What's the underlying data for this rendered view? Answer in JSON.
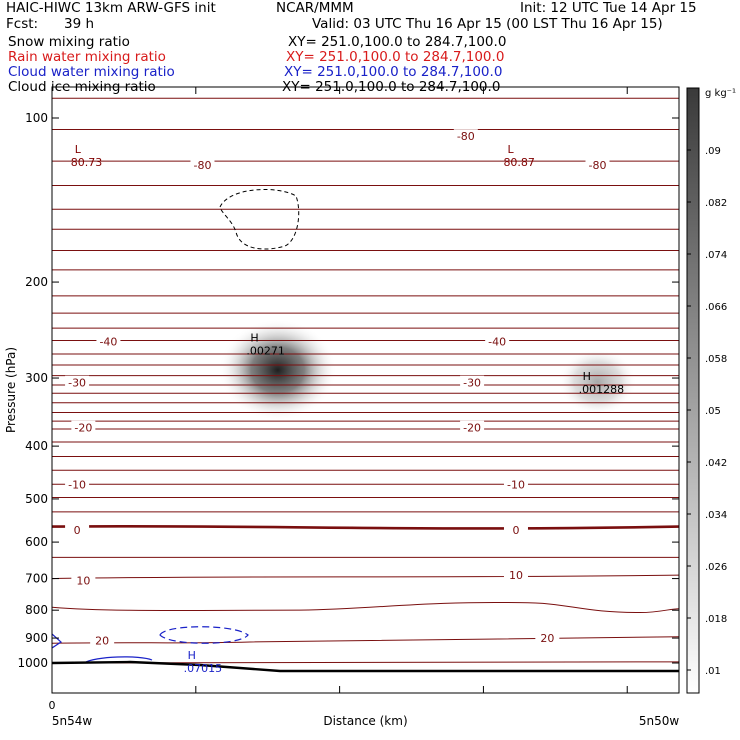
{
  "header": {
    "model": "HAIC-HIWC 13km ARW-GFS init",
    "org": "NCAR/MMM",
    "init": "Init: 12 UTC Tue 14 Apr 15",
    "fcst_label": "Fcst:",
    "fcst_value": "39 h",
    "valid": "Valid: 03 UTC Thu 16 Apr 15 (00 LST Thu 16 Apr 15)"
  },
  "fields": [
    {
      "name": "Snow mixing ratio",
      "xy": "XY= 251.0,100.0 to 284.7,100.0",
      "color": "#000000"
    },
    {
      "name": "Rain water mixing ratio",
      "xy": "XY= 251.0,100.0 to 284.7,100.0",
      "color": "#d81b1b"
    },
    {
      "name": "Cloud water mixing ratio",
      "xy": "XY= 251.0,100.0 to 284.7,100.0",
      "color": "#1a22c8"
    },
    {
      "name": "Cloud ice mixing ratio",
      "xy": "XY= 251.0,100.0 to 284.7,100.0",
      "color": "#000000"
    }
  ],
  "chart_data": {
    "type": "heatmap",
    "subtype": "vertical cross-section",
    "xlabel": "Distance (km)",
    "ylabel": "Pressure (hPa)",
    "x_tick_zero": "0",
    "x_endpoints": [
      "5n54w",
      "5n50w"
    ],
    "y_scale": "log",
    "yticks": [
      100,
      200,
      300,
      400,
      500,
      600,
      700,
      800,
      900,
      1000
    ],
    "ylim": [
      1050,
      50
    ],
    "colorbar": {
      "unit": "g kg⁻¹",
      "ticks": [
        ".01",
        ".018",
        ".026",
        ".034",
        ".042",
        ".05",
        ".058",
        ".066",
        ".074",
        ".082",
        ".09"
      ],
      "low_color": "#ffffff",
      "high_color": "#3a3a3a"
    },
    "temperature_contour_labels": [
      {
        "text": "-80",
        "p": 122,
        "x": 0.24
      },
      {
        "text": "-80",
        "p": 108,
        "x": 0.66
      },
      {
        "text": "-80",
        "p": 122,
        "x": 0.87
      },
      {
        "text": "-40",
        "p": 257,
        "x": 0.09
      },
      {
        "text": "-40",
        "p": 257,
        "x": 0.71
      },
      {
        "text": "-30",
        "p": 306,
        "x": 0.04
      },
      {
        "text": "-30",
        "p": 306,
        "x": 0.67
      },
      {
        "text": "-20",
        "p": 370,
        "x": 0.05
      },
      {
        "text": "-20",
        "p": 370,
        "x": 0.67
      },
      {
        "text": "-10",
        "p": 470,
        "x": 0.04
      },
      {
        "text": "-10",
        "p": 470,
        "x": 0.74
      },
      {
        "text": "0",
        "p": 570,
        "x": 0.04
      },
      {
        "text": "0",
        "p": 570,
        "x": 0.74
      },
      {
        "text": "10",
        "p": 705,
        "x": 0.05
      },
      {
        "text": "10",
        "p": 690,
        "x": 0.74
      },
      {
        "text": "20",
        "p": 910,
        "x": 0.08
      },
      {
        "text": "20",
        "p": 900,
        "x": 0.79
      }
    ],
    "extrema": [
      {
        "kind": "L",
        "value": "80.73",
        "p": 115,
        "x": 0.03,
        "color": "#800000"
      },
      {
        "kind": "L",
        "value": "80.87",
        "p": 115,
        "x": 0.72,
        "color": "#800000"
      },
      {
        "kind": "H",
        "value": ".00271",
        "p": 255,
        "x": 0.31,
        "color": "#000000"
      },
      {
        "kind": "H",
        "value": ".001288",
        "p": 300,
        "x": 0.84,
        "color": "#000000"
      },
      {
        "kind": "H",
        "value": ".07015",
        "p": 975,
        "x": 0.21,
        "color": "#1a22c8"
      }
    ],
    "snow_maxima": [
      {
        "p": 290,
        "x": 0.36,
        "value": 0.09
      },
      {
        "p": 305,
        "x": 0.87,
        "value": 0.04
      }
    ]
  }
}
